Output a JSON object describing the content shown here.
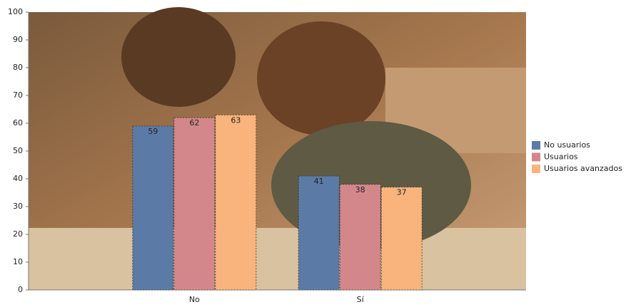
{
  "chart_data": {
    "type": "bar",
    "categories": [
      "No",
      "Sí"
    ],
    "series": [
      {
        "name": "No usuarios",
        "color": "#5b7ba6",
        "values": [
          59,
          41
        ]
      },
      {
        "name": "Usuarios",
        "color": "#d4878a",
        "values": [
          62,
          38
        ]
      },
      {
        "name": "Usuarios avanzados",
        "color": "#f8b47c",
        "values": [
          63,
          37
        ]
      }
    ],
    "ylim": [
      0,
      100
    ],
    "yticks": [
      0,
      10,
      20,
      30,
      40,
      50,
      60,
      70,
      80,
      90,
      100
    ],
    "legend": "right"
  }
}
